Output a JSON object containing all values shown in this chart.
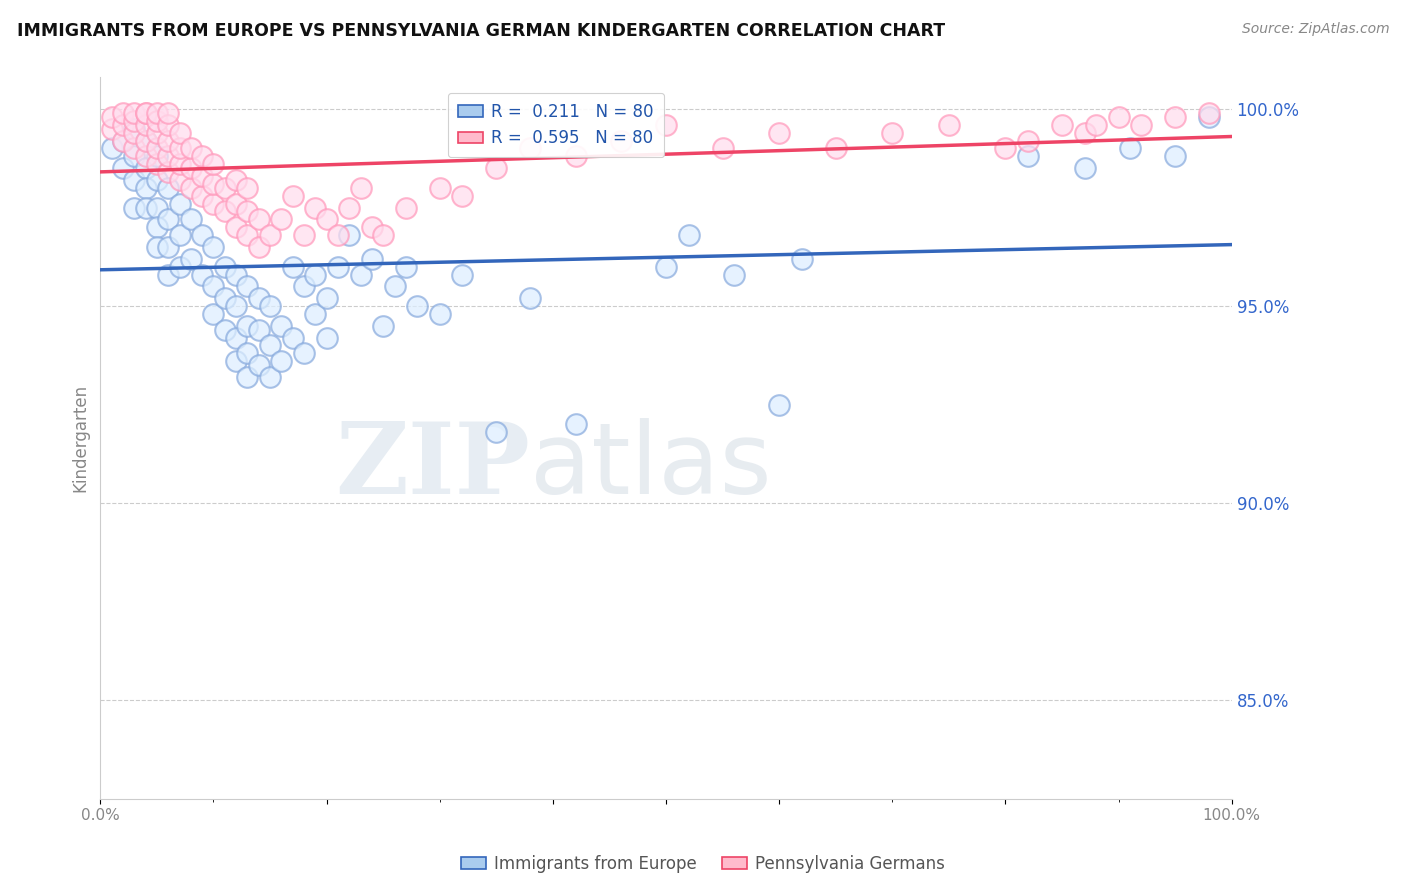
{
  "title": "IMMIGRANTS FROM EUROPE VS PENNSYLVANIA GERMAN KINDERGARTEN CORRELATION CHART",
  "source": "Source: ZipAtlas.com",
  "ylabel": "Kindergarten",
  "xlim": [
    0.0,
    1.0
  ],
  "ylim": [
    0.825,
    1.008
  ],
  "legend_blue_r": "0.211",
  "legend_blue_n": "80",
  "legend_pink_r": "0.595",
  "legend_pink_n": "80",
  "blue_color": "#88AADD",
  "pink_color": "#FF99BB",
  "blue_line_color": "#3366BB",
  "pink_line_color": "#EE4466",
  "watermark_zip": "ZIP",
  "watermark_atlas": "atlas",
  "background_color": "#FFFFFF",
  "blue_x": [
    0.01,
    0.02,
    0.02,
    0.03,
    0.03,
    0.03,
    0.03,
    0.04,
    0.04,
    0.04,
    0.04,
    0.05,
    0.05,
    0.05,
    0.05,
    0.05,
    0.06,
    0.06,
    0.06,
    0.06,
    0.07,
    0.07,
    0.07,
    0.08,
    0.08,
    0.09,
    0.09,
    0.1,
    0.1,
    0.1,
    0.11,
    0.11,
    0.11,
    0.12,
    0.12,
    0.12,
    0.12,
    0.13,
    0.13,
    0.13,
    0.13,
    0.14,
    0.14,
    0.14,
    0.15,
    0.15,
    0.15,
    0.16,
    0.16,
    0.17,
    0.17,
    0.18,
    0.18,
    0.19,
    0.19,
    0.2,
    0.2,
    0.21,
    0.22,
    0.23,
    0.24,
    0.25,
    0.26,
    0.27,
    0.28,
    0.3,
    0.32,
    0.35,
    0.38,
    0.42,
    0.5,
    0.52,
    0.56,
    0.6,
    0.62,
    0.82,
    0.87,
    0.91,
    0.95,
    0.98
  ],
  "blue_y": [
    0.99,
    0.985,
    0.992,
    0.988,
    0.982,
    0.975,
    0.995,
    0.985,
    0.98,
    0.992,
    0.975,
    0.988,
    0.982,
    0.975,
    0.97,
    0.965,
    0.98,
    0.972,
    0.965,
    0.958,
    0.976,
    0.968,
    0.96,
    0.972,
    0.962,
    0.968,
    0.958,
    0.965,
    0.955,
    0.948,
    0.96,
    0.952,
    0.944,
    0.958,
    0.95,
    0.942,
    0.936,
    0.955,
    0.945,
    0.938,
    0.932,
    0.952,
    0.944,
    0.935,
    0.95,
    0.94,
    0.932,
    0.945,
    0.936,
    0.96,
    0.942,
    0.955,
    0.938,
    0.958,
    0.948,
    0.952,
    0.942,
    0.96,
    0.968,
    0.958,
    0.962,
    0.945,
    0.955,
    0.96,
    0.95,
    0.948,
    0.958,
    0.918,
    0.952,
    0.92,
    0.96,
    0.968,
    0.958,
    0.925,
    0.962,
    0.988,
    0.985,
    0.99,
    0.988,
    0.998
  ],
  "pink_x": [
    0.01,
    0.01,
    0.02,
    0.02,
    0.02,
    0.03,
    0.03,
    0.03,
    0.03,
    0.04,
    0.04,
    0.04,
    0.04,
    0.04,
    0.05,
    0.05,
    0.05,
    0.05,
    0.05,
    0.06,
    0.06,
    0.06,
    0.06,
    0.06,
    0.07,
    0.07,
    0.07,
    0.07,
    0.08,
    0.08,
    0.08,
    0.09,
    0.09,
    0.09,
    0.1,
    0.1,
    0.1,
    0.11,
    0.11,
    0.12,
    0.12,
    0.12,
    0.13,
    0.13,
    0.13,
    0.14,
    0.14,
    0.15,
    0.16,
    0.17,
    0.18,
    0.19,
    0.2,
    0.21,
    0.22,
    0.23,
    0.24,
    0.25,
    0.27,
    0.3,
    0.32,
    0.35,
    0.38,
    0.42,
    0.46,
    0.5,
    0.55,
    0.6,
    0.65,
    0.7,
    0.75,
    0.8,
    0.82,
    0.85,
    0.87,
    0.88,
    0.9,
    0.92,
    0.95,
    0.98
  ],
  "pink_y": [
    0.995,
    0.998,
    0.992,
    0.996,
    0.999,
    0.99,
    0.994,
    0.997,
    0.999,
    0.988,
    0.992,
    0.996,
    0.999,
    0.999,
    0.986,
    0.99,
    0.994,
    0.997,
    0.999,
    0.984,
    0.988,
    0.992,
    0.996,
    0.999,
    0.982,
    0.986,
    0.99,
    0.994,
    0.98,
    0.985,
    0.99,
    0.978,
    0.983,
    0.988,
    0.976,
    0.981,
    0.986,
    0.974,
    0.98,
    0.97,
    0.976,
    0.982,
    0.968,
    0.974,
    0.98,
    0.965,
    0.972,
    0.968,
    0.972,
    0.978,
    0.968,
    0.975,
    0.972,
    0.968,
    0.975,
    0.98,
    0.97,
    0.968,
    0.975,
    0.98,
    0.978,
    0.985,
    0.99,
    0.988,
    0.992,
    0.996,
    0.99,
    0.994,
    0.99,
    0.994,
    0.996,
    0.99,
    0.992,
    0.996,
    0.994,
    0.996,
    0.998,
    0.996,
    0.998,
    0.999
  ]
}
